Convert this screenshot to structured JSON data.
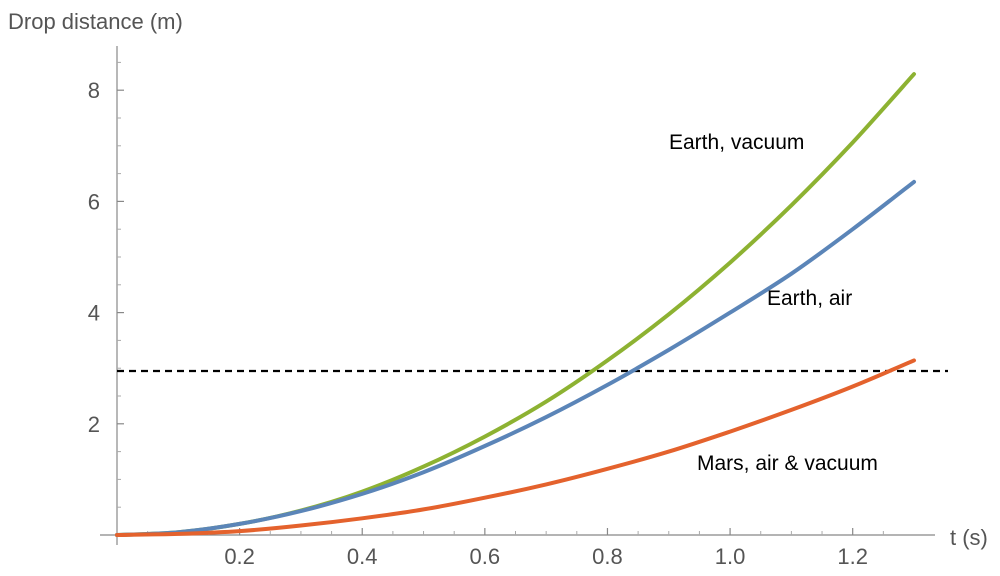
{
  "chart_data": {
    "type": "line",
    "xlabel": "t (s)",
    "ylabel": "Drop distance (m)",
    "xlim": [
      0,
      1.3
    ],
    "ylim": [
      0,
      8.7
    ],
    "x_ticks": [
      {
        "value": 0.2,
        "label": "0.2"
      },
      {
        "value": 0.4,
        "label": "0.4"
      },
      {
        "value": 0.6,
        "label": "0.6"
      },
      {
        "value": 0.8,
        "label": "0.8"
      },
      {
        "value": 1.0,
        "label": "1.0"
      },
      {
        "value": 1.2,
        "label": "1.2"
      }
    ],
    "y_ticks": [
      {
        "value": 2,
        "label": "2"
      },
      {
        "value": 4,
        "label": "4"
      },
      {
        "value": 6,
        "label": "6"
      },
      {
        "value": 8,
        "label": "8"
      }
    ],
    "reference_line": {
      "y": 2.95,
      "style": "dashed",
      "color": "#000000"
    },
    "grid": false,
    "series": [
      {
        "name": "Earth, vacuum",
        "color": "#8db232",
        "x": [
          0,
          0.1,
          0.2,
          0.3,
          0.4,
          0.5,
          0.6,
          0.7,
          0.8,
          0.9,
          1.0,
          1.1,
          1.2,
          1.3
        ],
        "y": [
          0,
          0.05,
          0.2,
          0.44,
          0.78,
          1.23,
          1.77,
          2.4,
          3.14,
          3.97,
          4.9,
          5.93,
          7.06,
          8.29
        ]
      },
      {
        "name": "Earth, air",
        "color": "#5b85b8",
        "x": [
          0,
          0.1,
          0.2,
          0.3,
          0.4,
          0.5,
          0.6,
          0.7,
          0.8,
          0.9,
          1.0,
          1.1,
          1.2,
          1.3
        ],
        "y": [
          0,
          0.05,
          0.2,
          0.43,
          0.74,
          1.13,
          1.6,
          2.12,
          2.7,
          3.33,
          4.0,
          4.7,
          5.5,
          6.35
        ]
      },
      {
        "name": "Mars, air & vacuum",
        "color": "#e4622d",
        "x": [
          0,
          0.1,
          0.2,
          0.3,
          0.4,
          0.5,
          0.6,
          0.7,
          0.8,
          0.9,
          1.0,
          1.1,
          1.2,
          1.3
        ],
        "y": [
          0,
          0.02,
          0.07,
          0.17,
          0.3,
          0.46,
          0.67,
          0.91,
          1.19,
          1.5,
          1.86,
          2.25,
          2.67,
          3.14
        ]
      }
    ]
  }
}
